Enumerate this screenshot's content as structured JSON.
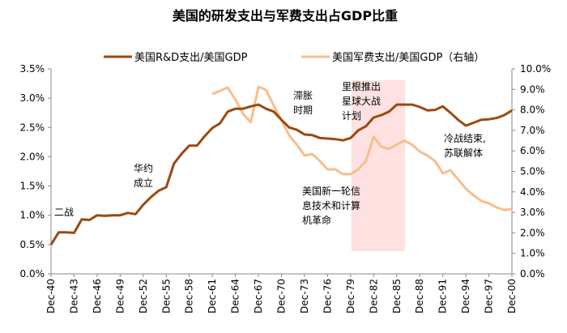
{
  "chart_data": {
    "type": "line",
    "title": "美国的研发支出与军费支出占GDP比重",
    "x": [
      1940,
      1941,
      1942,
      1943,
      1944,
      1945,
      1946,
      1947,
      1948,
      1949,
      1950,
      1951,
      1952,
      1953,
      1954,
      1955,
      1956,
      1957,
      1958,
      1959,
      1960,
      1961,
      1962,
      1963,
      1964,
      1965,
      1966,
      1967,
      1968,
      1969,
      1970,
      1971,
      1972,
      1973,
      1974,
      1975,
      1976,
      1977,
      1978,
      1979,
      1980,
      1981,
      1982,
      1983,
      1984,
      1985,
      1986,
      1987,
      1988,
      1989,
      1990,
      1991,
      1992,
      1993,
      1994,
      1995,
      1996,
      1997,
      1998,
      1999,
      2000
    ],
    "xtick_labels": [
      "Dec-40",
      "Dec-43",
      "Dec-46",
      "Dec-49",
      "Dec-52",
      "Dec-55",
      "Dec-58",
      "Dec-61",
      "Dec-64",
      "Dec-67",
      "Dec-70",
      "Dec-73",
      "Dec-76",
      "Dec-79",
      "Dec-82",
      "Dec-85",
      "Dec-88",
      "Dec-91",
      "Dec-94",
      "Dec-97",
      "Dec-00"
    ],
    "yleft": {
      "range": [
        0,
        3.5
      ],
      "ticks": [
        "0.0%",
        "0.5%",
        "1.0%",
        "1.5%",
        "2.0%",
        "2.5%",
        "3.0%",
        "3.5%"
      ]
    },
    "yright": {
      "range": [
        0,
        10
      ],
      "ticks": [
        "0.0%",
        "1.0%",
        "2.0%",
        "3.0%",
        "4.0%",
        "5.0%",
        "6.0%",
        "7.0%",
        "8.0%",
        "9.0%",
        "10.0%"
      ]
    },
    "grid": false,
    "legend_placement": "top",
    "series": [
      {
        "name": "美国R&D支出/美国GDP",
        "axis": "left",
        "color": "#9A4A10",
        "values": [
          0.5,
          0.71,
          0.71,
          0.7,
          0.93,
          0.92,
          1.0,
          0.99,
          1.0,
          1.0,
          1.04,
          1.02,
          1.18,
          1.31,
          1.42,
          1.48,
          1.88,
          2.05,
          2.19,
          2.19,
          2.35,
          2.49,
          2.57,
          2.77,
          2.82,
          2.82,
          2.86,
          2.89,
          2.82,
          2.77,
          2.63,
          2.5,
          2.46,
          2.38,
          2.37,
          2.32,
          2.31,
          2.3,
          2.28,
          2.32,
          2.45,
          2.52,
          2.67,
          2.71,
          2.77,
          2.89,
          2.89,
          2.89,
          2.85,
          2.79,
          2.8,
          2.86,
          2.75,
          2.63,
          2.53,
          2.58,
          2.63,
          2.64,
          2.66,
          2.71,
          2.79
        ]
      },
      {
        "name": "美国军费支出/美国GDP（右轴）",
        "axis": "right",
        "color": "#F9BE8C",
        "values": [
          null,
          null,
          null,
          null,
          null,
          null,
          null,
          null,
          null,
          null,
          null,
          null,
          null,
          null,
          null,
          null,
          null,
          null,
          null,
          null,
          null,
          8.77,
          8.93,
          9.09,
          8.5,
          7.8,
          7.4,
          9.13,
          8.97,
          8.2,
          7.5,
          6.76,
          6.3,
          5.77,
          5.85,
          5.5,
          5.1,
          5.1,
          4.86,
          4.86,
          5.1,
          5.5,
          6.7,
          6.2,
          6.1,
          6.3,
          6.5,
          6.3,
          5.97,
          5.77,
          5.5,
          4.9,
          5.06,
          4.6,
          4.15,
          3.83,
          3.56,
          3.44,
          3.24,
          3.12,
          3.16
        ]
      }
    ],
    "shaded_region": {
      "x": [
        1979.1,
        1986.1
      ],
      "color": "#FFE1E1"
    },
    "annotations": [
      {
        "lines": [
          "二战"
        ]
      },
      {
        "lines": [
          "华约",
          "成立"
        ]
      },
      {
        "lines": [
          "滞胀",
          "时期"
        ]
      },
      {
        "lines": [
          "里根推出",
          "星球大战",
          "计划"
        ]
      },
      {
        "lines": [
          "美国新一轮信",
          "息技术和计算",
          "机革命"
        ]
      },
      {
        "lines": [
          "冷战结束,",
          "苏联解体"
        ]
      }
    ]
  }
}
